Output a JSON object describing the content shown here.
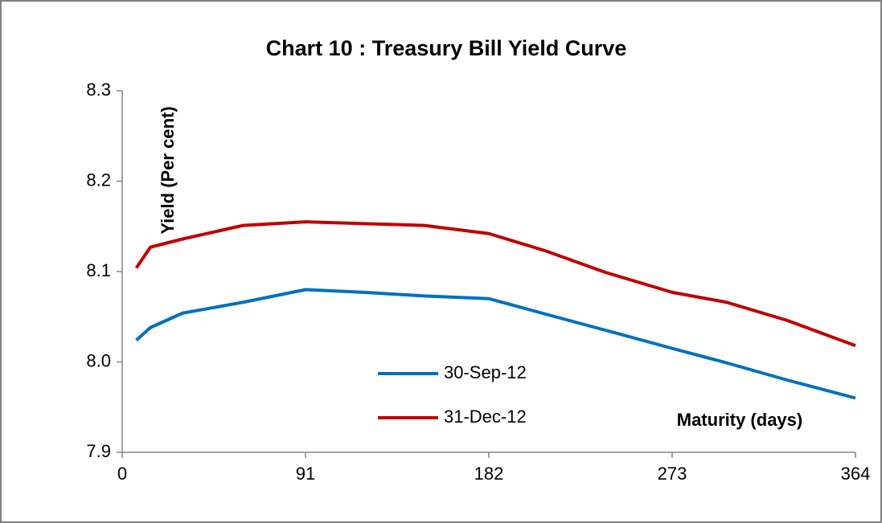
{
  "chart_data": {
    "type": "line",
    "title": "Chart 10 : Treasury Bill Yield Curve",
    "y_label": "Yield (Per cent)",
    "x_label": "Maturity (days)",
    "x": [
      7,
      14,
      30,
      60,
      91,
      120,
      150,
      182,
      210,
      240,
      273,
      300,
      330,
      364
    ],
    "series": [
      {
        "name": "30-Sep-12",
        "color": "#0070c0",
        "values": [
          8.024,
          8.038,
          8.054,
          8.066,
          8.08,
          8.077,
          8.073,
          8.07,
          8.053,
          8.035,
          8.015,
          7.999,
          7.98,
          7.96
        ]
      },
      {
        "name": "31-Dec-12",
        "color": "#c00000",
        "values": [
          8.104,
          8.127,
          8.136,
          8.151,
          8.155,
          8.153,
          8.151,
          8.142,
          8.123,
          8.099,
          8.077,
          8.066,
          8.046,
          8.018
        ]
      }
    ],
    "xlim": [
      0,
      364
    ],
    "xticks": [
      0,
      91,
      182,
      273,
      364
    ],
    "ylim": [
      7.9,
      8.3
    ],
    "yticks": [
      7.9,
      {
        "value": 8,
        "label": "8.0"
      },
      8.1,
      8.2,
      8.3
    ],
    "grid": false
  }
}
